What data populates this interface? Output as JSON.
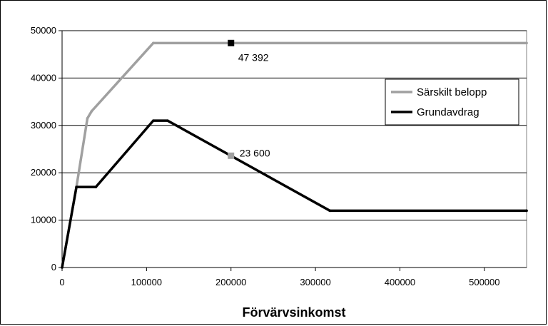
{
  "chart_data": {
    "type": "line",
    "title": "",
    "xlabel": "Förvärvsinkomst",
    "ylabel": "",
    "xlim": [
      0,
      550000
    ],
    "ylim": [
      0,
      50000
    ],
    "x_ticks": [
      0,
      100000,
      200000,
      300000,
      400000,
      500000
    ],
    "y_ticks": [
      0,
      10000,
      20000,
      30000,
      40000,
      50000
    ],
    "grid": "horizontal",
    "legend_position": "right",
    "series": [
      {
        "name": "Särskilt belopp",
        "color": "#a0a0a0",
        "x": [
          0,
          17000,
          30000,
          35000,
          108000,
          550000
        ],
        "y": [
          0,
          17000,
          31500,
          33000,
          47392,
          47392
        ]
      },
      {
        "name": "Grundavdrag",
        "color": "#000000",
        "x": [
          0,
          17000,
          40000,
          108000,
          125000,
          317000,
          550000
        ],
        "y": [
          0,
          17000,
          17000,
          31000,
          31000,
          12000,
          12000
        ]
      }
    ],
    "annotations": [
      {
        "text": "47 392",
        "x": 200000,
        "y": 47392,
        "marker_color": "#000000"
      },
      {
        "text": "23 600",
        "x": 200000,
        "y": 23600,
        "marker_color": "#a0a0a0"
      }
    ]
  }
}
